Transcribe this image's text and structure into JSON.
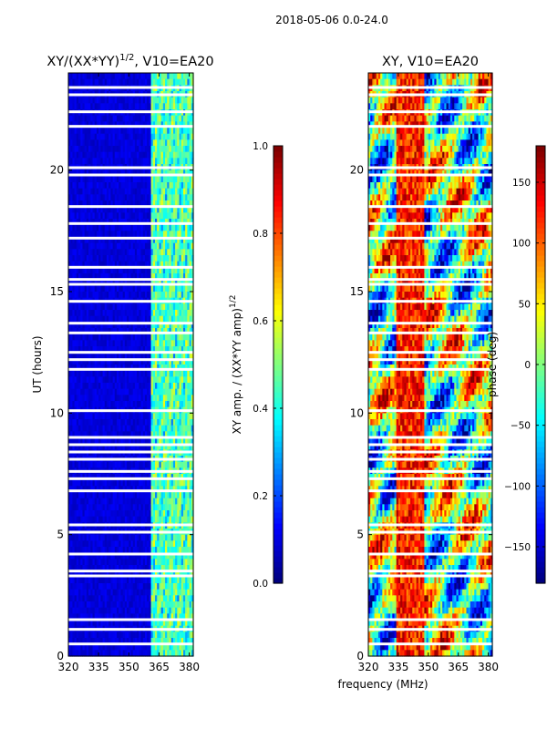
{
  "suptitle": "2018-05-06 0.0-24.0",
  "chart_data": [
    {
      "type": "heatmap",
      "title_main": "XY/(XX*YY)",
      "title_sup": "1/2",
      "title_tail": ", V10=EA20",
      "xlabel": "",
      "ylabel": "UT (hours)",
      "xlim": [
        320,
        382
      ],
      "ylim": [
        0,
        24
      ],
      "xticks": [
        "320",
        "335",
        "350",
        "365",
        "380"
      ],
      "yticks": [
        "0",
        "5",
        "10",
        "15",
        "20"
      ],
      "colormap": "jet",
      "colorbar": {
        "label_main": "XY amp. / (XX*YY amp)",
        "label_sup": "1/2",
        "range": [
          0.0,
          1.0
        ],
        "ticks": [
          "0.0",
          "0.2",
          "0.4",
          "0.6",
          "0.8",
          "1.0"
        ]
      },
      "notes": "Low amplitude (~0.05) below 361 MHz; ~0.3-0.6 bands between 361 and 380 MHz; many flagged (white) time rows"
    },
    {
      "type": "heatmap",
      "title": "XY, V10=EA20",
      "xlabel": "frequency (MHz)",
      "ylabel": "",
      "xlim": [
        320,
        382
      ],
      "ylim": [
        0,
        24
      ],
      "xticks": [
        "320",
        "335",
        "350",
        "365",
        "380"
      ],
      "yticks": [
        "0",
        "5",
        "10",
        "15",
        "20"
      ],
      "colormap": "jet",
      "colorbar": {
        "label": "phase (deg)",
        "range": [
          -180,
          180
        ],
        "ticks": [
          "−150",
          "−100",
          "−50",
          "0",
          "50",
          "100",
          "150"
        ]
      },
      "notes": "Phase wraps across full range, red/orange band near 335-345 MHz"
    }
  ]
}
